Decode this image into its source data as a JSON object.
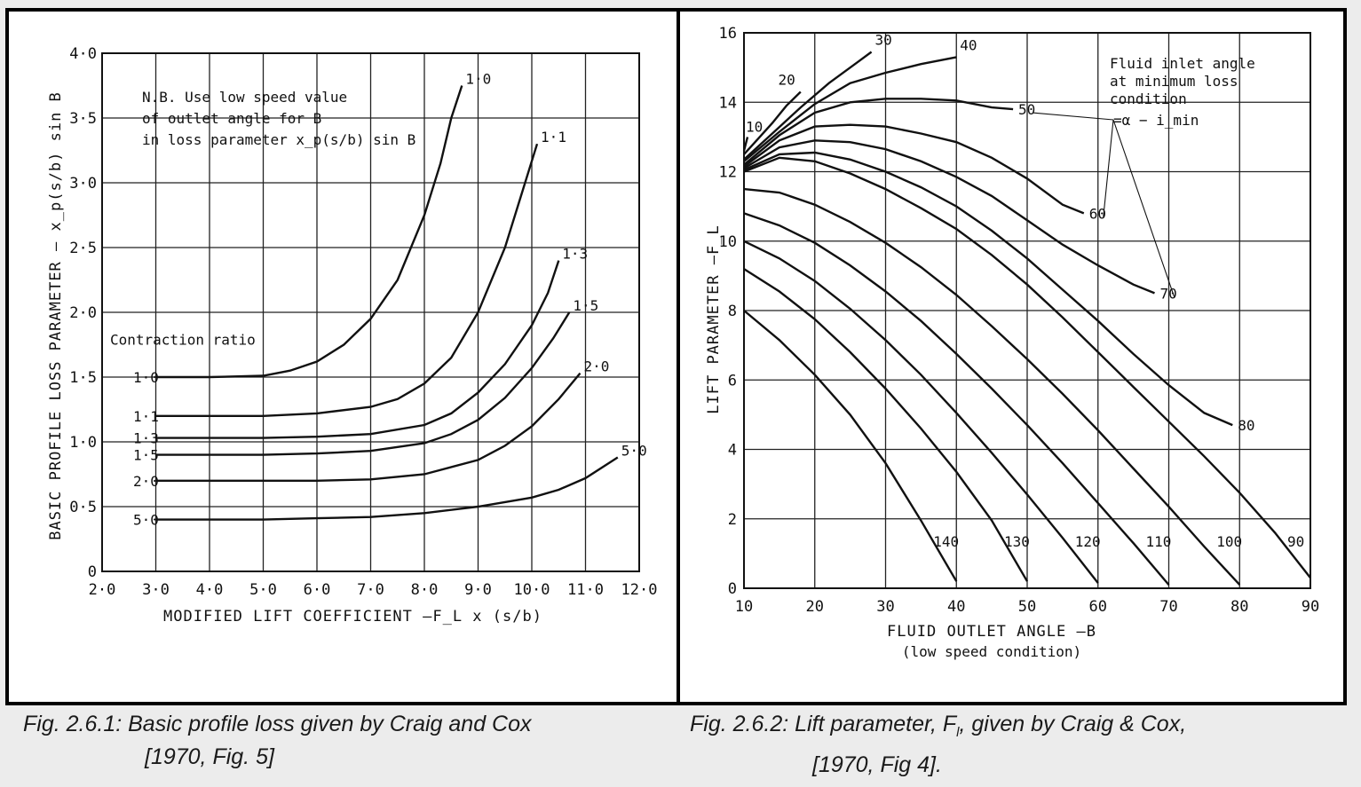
{
  "captions": {
    "left_line1": "Fig. 2.6.1: Basic profile loss given by Craig and Cox",
    "left_line2": "[1970, Fig. 5]",
    "right_line1_prefix": "Fig. 2.6.2: Lift parameter, F",
    "right_line1_sub": "l",
    "right_line1_suffix": ", given by Craig & Cox,",
    "right_line2": "[1970, Fig 4]."
  },
  "chart_data": [
    {
      "type": "line",
      "xlabel": "MODIFIED LIFT COEFFICIENT —F_L x (s/b)",
      "ylabel": "BASIC PROFILE LOSS PARAMETER — x_p(s/b) sin B",
      "xlim": [
        2.0,
        12.0
      ],
      "ylim": [
        0,
        4.0
      ],
      "x_ticks": [
        2.0,
        3.0,
        4.0,
        5.0,
        6.0,
        7.0,
        8.0,
        9.0,
        10.0,
        11.0,
        12.0
      ],
      "x_tick_labels": [
        "2·0",
        "3·0",
        "4·0",
        "5·0",
        "6·0",
        "7·0",
        "8·0",
        "9·0",
        "10·0",
        "11·0",
        "12·0"
      ],
      "y_ticks": [
        0,
        0.5,
        1.0,
        1.5,
        2.0,
        2.5,
        3.0,
        3.5,
        4.0
      ],
      "y_tick_labels": [
        "0",
        "0·5",
        "1·0",
        "1·5",
        "2·0",
        "2·5",
        "3·0",
        "3·5",
        "4·0"
      ],
      "grid": true,
      "note_lines": [
        "N.B. Use low speed value",
        "of outlet angle for B",
        "in loss parameter x_p(s/b) sin B"
      ],
      "legend_title": "Contraction ratio",
      "series": [
        {
          "name": "1·0",
          "left_label": "1·0",
          "end_label": "1·0",
          "x": [
            3.0,
            4.0,
            5.0,
            5.5,
            6.0,
            6.5,
            7.0,
            7.5,
            8.0,
            8.3,
            8.5,
            8.7
          ],
          "y": [
            1.5,
            1.5,
            1.51,
            1.55,
            1.62,
            1.75,
            1.95,
            2.25,
            2.75,
            3.15,
            3.5,
            3.75
          ]
        },
        {
          "name": "1·1",
          "left_label": "1·1",
          "end_label": "1·1",
          "x": [
            3.0,
            4.0,
            5.0,
            6.0,
            7.0,
            7.5,
            8.0,
            8.5,
            9.0,
            9.5,
            9.8,
            10.1
          ],
          "y": [
            1.2,
            1.2,
            1.2,
            1.22,
            1.27,
            1.33,
            1.45,
            1.65,
            2.0,
            2.5,
            2.9,
            3.3
          ]
        },
        {
          "name": "1·3",
          "left_label": "1·3",
          "end_label": "1·3",
          "x": [
            3.0,
            4.0,
            5.0,
            6.0,
            7.0,
            8.0,
            8.5,
            9.0,
            9.5,
            10.0,
            10.3,
            10.5
          ],
          "y": [
            1.03,
            1.03,
            1.03,
            1.04,
            1.06,
            1.13,
            1.22,
            1.38,
            1.6,
            1.9,
            2.15,
            2.4
          ]
        },
        {
          "name": "1·5",
          "left_label": "1·5",
          "end_label": "1·5",
          "x": [
            3.0,
            4.0,
            5.0,
            6.0,
            7.0,
            8.0,
            8.5,
            9.0,
            9.5,
            10.0,
            10.4,
            10.7
          ],
          "y": [
            0.9,
            0.9,
            0.9,
            0.91,
            0.93,
            0.99,
            1.06,
            1.17,
            1.34,
            1.57,
            1.8,
            2.0
          ]
        },
        {
          "name": "2·0",
          "left_label": "2·0",
          "end_label": "2·0",
          "x": [
            3.0,
            4.0,
            5.0,
            6.0,
            7.0,
            8.0,
            9.0,
            9.5,
            10.0,
            10.5,
            10.9
          ],
          "y": [
            0.7,
            0.7,
            0.7,
            0.7,
            0.71,
            0.75,
            0.86,
            0.97,
            1.12,
            1.33,
            1.53
          ]
        },
        {
          "name": "5·0",
          "left_label": "5·0",
          "end_label": "5·0",
          "x": [
            3.0,
            4.0,
            5.0,
            6.0,
            7.0,
            8.0,
            9.0,
            10.0,
            10.5,
            11.0,
            11.6
          ],
          "y": [
            0.4,
            0.4,
            0.4,
            0.41,
            0.42,
            0.45,
            0.5,
            0.57,
            0.63,
            0.72,
            0.88
          ]
        }
      ]
    },
    {
      "type": "line",
      "xlabel": "FLUID OUTLET ANGLE —B",
      "xlabel2": "(low speed condition)",
      "ylabel": "LIFT PARAMETER —F_L",
      "xlim": [
        10,
        90
      ],
      "ylim": [
        0,
        16
      ],
      "x_ticks": [
        10,
        20,
        30,
        40,
        50,
        60,
        70,
        80,
        90
      ],
      "y_ticks": [
        0,
        2,
        4,
        6,
        8,
        10,
        12,
        14,
        16
      ],
      "grid": true,
      "legend_title_lines": [
        "Fluid inlet angle",
        "at minimum loss",
        "condition",
        "=α − i_min"
      ],
      "series": [
        {
          "name": "10",
          "x": [
            10,
            10.5
          ],
          "y": [
            12.6,
            13.0
          ]
        },
        {
          "name": "20",
          "x": [
            10,
            12,
            14,
            16,
            18
          ],
          "y": [
            12.5,
            12.95,
            13.4,
            13.9,
            14.3
          ]
        },
        {
          "name": "30",
          "x": [
            10,
            14,
            18,
            22,
            26,
            28
          ],
          "y": [
            12.35,
            13.1,
            13.85,
            14.55,
            15.15,
            15.45
          ]
        },
        {
          "name": "40",
          "x": [
            10,
            15,
            20,
            25,
            30,
            35,
            40
          ],
          "y": [
            12.3,
            13.15,
            13.95,
            14.55,
            14.85,
            15.1,
            15.3
          ]
        },
        {
          "name": "50",
          "x": [
            10,
            15,
            20,
            25,
            30,
            35,
            40,
            45,
            48
          ],
          "y": [
            12.2,
            13.05,
            13.7,
            14.0,
            14.1,
            14.1,
            14.05,
            13.85,
            13.8
          ]
        },
        {
          "name": "60",
          "x": [
            10,
            15,
            20,
            25,
            30,
            35,
            40,
            45,
            50,
            55,
            58
          ],
          "y": [
            12.15,
            12.9,
            13.3,
            13.35,
            13.3,
            13.1,
            12.85,
            12.4,
            11.8,
            11.05,
            10.8
          ]
        },
        {
          "name": "70",
          "x": [
            10,
            15,
            20,
            25,
            30,
            35,
            40,
            45,
            50,
            55,
            60,
            65,
            68
          ],
          "y": [
            12.1,
            12.7,
            12.9,
            12.85,
            12.65,
            12.3,
            11.85,
            11.3,
            10.6,
            9.9,
            9.3,
            8.75,
            8.5
          ]
        },
        {
          "name": "80",
          "x": [
            10,
            15,
            20,
            25,
            30,
            35,
            40,
            45,
            50,
            55,
            60,
            65,
            70,
            75,
            79
          ],
          "y": [
            12.05,
            12.5,
            12.55,
            12.35,
            12.0,
            11.55,
            11.0,
            10.3,
            9.5,
            8.6,
            7.7,
            6.75,
            5.85,
            5.05,
            4.7
          ]
        },
        {
          "name": "90",
          "x": [
            10,
            15,
            20,
            25,
            30,
            35,
            40,
            45,
            50,
            55,
            60,
            65,
            70,
            75,
            80,
            85,
            90
          ],
          "y": [
            12.0,
            12.4,
            12.3,
            11.95,
            11.5,
            10.95,
            10.35,
            9.6,
            8.75,
            7.8,
            6.8,
            5.8,
            4.8,
            3.8,
            2.75,
            1.6,
            0.3
          ]
        },
        {
          "name": "100",
          "x": [
            10,
            15,
            20,
            25,
            30,
            35,
            40,
            45,
            50,
            55,
            60,
            65,
            70,
            75,
            80
          ],
          "y": [
            11.5,
            11.4,
            11.05,
            10.55,
            9.95,
            9.25,
            8.45,
            7.55,
            6.6,
            5.6,
            4.55,
            3.45,
            2.35,
            1.2,
            0.1
          ]
        },
        {
          "name": "110",
          "x": [
            10,
            15,
            20,
            25,
            30,
            35,
            40,
            45,
            50,
            55,
            60,
            65,
            70
          ],
          "y": [
            10.8,
            10.45,
            9.95,
            9.3,
            8.55,
            7.7,
            6.75,
            5.75,
            4.7,
            3.6,
            2.45,
            1.3,
            0.1
          ]
        },
        {
          "name": "120",
          "x": [
            10,
            15,
            20,
            25,
            30,
            35,
            40,
            45,
            50,
            55,
            60
          ],
          "y": [
            10.0,
            9.5,
            8.85,
            8.05,
            7.15,
            6.15,
            5.05,
            3.9,
            2.7,
            1.45,
            0.15
          ]
        },
        {
          "name": "130",
          "x": [
            10,
            15,
            20,
            25,
            30,
            35,
            40,
            45,
            50
          ],
          "y": [
            9.2,
            8.55,
            7.75,
            6.8,
            5.75,
            4.6,
            3.35,
            1.95,
            0.2
          ]
        },
        {
          "name": "140",
          "x": [
            10,
            15,
            20,
            25,
            30,
            35,
            40
          ],
          "y": [
            8.0,
            7.15,
            6.15,
            5.0,
            3.6,
            1.95,
            0.2
          ]
        }
      ]
    }
  ]
}
